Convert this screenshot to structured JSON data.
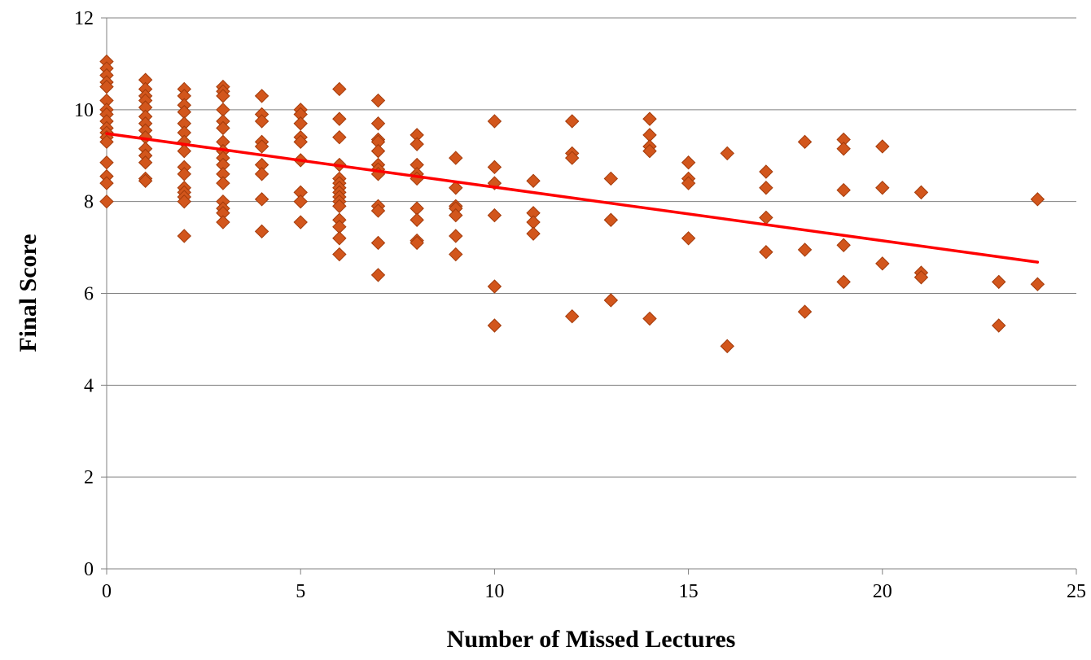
{
  "chart_data": {
    "type": "scatter",
    "xlabel": "Number of Missed Lectures",
    "ylabel": "Final Score",
    "xlim": [
      0,
      25
    ],
    "ylim": [
      0,
      12
    ],
    "x_ticks": [
      "0",
      "5",
      "10",
      "15",
      "20",
      "25"
    ],
    "y_ticks": [
      "0",
      "2",
      "4",
      "6",
      "8",
      "10",
      "12"
    ],
    "grid": "horizontal",
    "legend": "none",
    "series": [
      {
        "marker": "diamond",
        "color": "#d2561c",
        "edge_color": "#a23a0a",
        "points": [
          [
            0,
            11.05
          ],
          [
            0,
            10.9
          ],
          [
            0,
            10.75
          ],
          [
            0,
            10.6
          ],
          [
            0,
            10.5
          ],
          [
            0,
            10.2
          ],
          [
            0,
            10.0
          ],
          [
            0,
            9.9
          ],
          [
            0,
            9.75
          ],
          [
            0,
            9.6
          ],
          [
            0,
            9.5
          ],
          [
            0,
            9.4
          ],
          [
            0,
            9.3
          ],
          [
            0,
            8.85
          ],
          [
            0,
            8.55
          ],
          [
            0,
            8.4
          ],
          [
            0,
            8.0
          ],
          [
            1,
            10.65
          ],
          [
            1,
            10.45
          ],
          [
            1,
            10.3
          ],
          [
            1,
            10.2
          ],
          [
            1,
            10.05
          ],
          [
            1,
            9.85
          ],
          [
            1,
            9.7
          ],
          [
            1,
            9.55
          ],
          [
            1,
            9.4
          ],
          [
            1,
            9.15
          ],
          [
            1,
            9.0
          ],
          [
            1,
            8.85
          ],
          [
            1,
            8.5
          ],
          [
            1,
            8.45
          ],
          [
            2,
            10.45
          ],
          [
            2,
            10.3
          ],
          [
            2,
            10.1
          ],
          [
            2,
            9.95
          ],
          [
            2,
            9.7
          ],
          [
            2,
            9.5
          ],
          [
            2,
            9.3
          ],
          [
            2,
            9.1
          ],
          [
            2,
            8.75
          ],
          [
            2,
            8.6
          ],
          [
            2,
            8.3
          ],
          [
            2,
            8.2
          ],
          [
            2,
            8.1
          ],
          [
            2,
            8.0
          ],
          [
            2,
            7.25
          ],
          [
            3,
            10.5
          ],
          [
            3,
            10.4
          ],
          [
            3,
            10.3
          ],
          [
            3,
            10.0
          ],
          [
            3,
            9.75
          ],
          [
            3,
            9.6
          ],
          [
            3,
            9.3
          ],
          [
            3,
            9.1
          ],
          [
            3,
            8.95
          ],
          [
            3,
            8.8
          ],
          [
            3,
            8.6
          ],
          [
            3,
            8.4
          ],
          [
            3,
            8.0
          ],
          [
            3,
            7.85
          ],
          [
            3,
            7.75
          ],
          [
            3,
            7.55
          ],
          [
            4,
            10.3
          ],
          [
            4,
            9.9
          ],
          [
            4,
            9.75
          ],
          [
            4,
            9.3
          ],
          [
            4,
            9.2
          ],
          [
            4,
            8.8
          ],
          [
            4,
            8.6
          ],
          [
            4,
            8.05
          ],
          [
            4,
            7.35
          ],
          [
            5,
            10.0
          ],
          [
            5,
            9.9
          ],
          [
            5,
            9.7
          ],
          [
            5,
            9.4
          ],
          [
            5,
            9.3
          ],
          [
            5,
            8.9
          ],
          [
            5,
            8.2
          ],
          [
            5,
            8.0
          ],
          [
            5,
            7.55
          ],
          [
            6,
            10.45
          ],
          [
            6,
            9.8
          ],
          [
            6,
            9.4
          ],
          [
            6,
            8.8
          ],
          [
            6,
            8.5
          ],
          [
            6,
            8.4
          ],
          [
            6,
            8.3
          ],
          [
            6,
            8.2
          ],
          [
            6,
            8.1
          ],
          [
            6,
            8.0
          ],
          [
            6,
            7.9
          ],
          [
            6,
            7.6
          ],
          [
            6,
            7.45
          ],
          [
            6,
            7.2
          ],
          [
            6,
            6.85
          ],
          [
            7,
            10.2
          ],
          [
            7,
            9.7
          ],
          [
            7,
            9.35
          ],
          [
            7,
            9.3
          ],
          [
            7,
            9.1
          ],
          [
            7,
            8.8
          ],
          [
            7,
            8.7
          ],
          [
            7,
            8.6
          ],
          [
            7,
            7.9
          ],
          [
            7,
            7.8
          ],
          [
            7,
            7.1
          ],
          [
            7,
            6.4
          ],
          [
            8,
            9.45
          ],
          [
            8,
            9.25
          ],
          [
            8,
            8.8
          ],
          [
            8,
            8.6
          ],
          [
            8,
            8.5
          ],
          [
            8,
            7.85
          ],
          [
            8,
            7.6
          ],
          [
            8,
            7.15
          ],
          [
            8,
            7.1
          ],
          [
            9,
            8.95
          ],
          [
            9,
            8.3
          ],
          [
            9,
            7.9
          ],
          [
            9,
            7.85
          ],
          [
            9,
            7.7
          ],
          [
            9,
            7.25
          ],
          [
            9,
            6.85
          ],
          [
            10,
            9.75
          ],
          [
            10,
            8.75
          ],
          [
            10,
            8.4
          ],
          [
            10,
            7.7
          ],
          [
            10,
            6.15
          ],
          [
            10,
            5.3
          ],
          [
            11,
            8.45
          ],
          [
            11,
            7.75
          ],
          [
            11,
            7.55
          ],
          [
            11,
            7.3
          ],
          [
            12,
            9.75
          ],
          [
            12,
            9.05
          ],
          [
            12,
            8.95
          ],
          [
            12,
            5.5
          ],
          [
            13,
            8.5
          ],
          [
            13,
            7.6
          ],
          [
            13,
            5.85
          ],
          [
            14,
            9.8
          ],
          [
            14,
            9.45
          ],
          [
            14,
            9.2
          ],
          [
            14,
            9.1
          ],
          [
            14,
            5.45
          ],
          [
            15,
            8.85
          ],
          [
            15,
            8.5
          ],
          [
            15,
            8.4
          ],
          [
            15,
            7.2
          ],
          [
            16,
            9.05
          ],
          [
            16,
            4.85
          ],
          [
            17,
            8.65
          ],
          [
            17,
            8.3
          ],
          [
            17,
            7.65
          ],
          [
            17,
            6.9
          ],
          [
            18,
            9.3
          ],
          [
            18,
            6.95
          ],
          [
            18,
            5.6
          ],
          [
            19,
            9.35
          ],
          [
            19,
            9.15
          ],
          [
            19,
            8.25
          ],
          [
            19,
            7.05
          ],
          [
            19,
            6.25
          ],
          [
            20,
            9.2
          ],
          [
            20,
            8.3
          ],
          [
            20,
            6.65
          ],
          [
            21,
            8.2
          ],
          [
            21,
            6.45
          ],
          [
            21,
            6.35
          ],
          [
            23,
            6.25
          ],
          [
            23,
            5.3
          ],
          [
            24,
            8.05
          ],
          [
            24,
            6.2
          ]
        ]
      }
    ],
    "trendline": {
      "type": "linear",
      "color": "#ff0000",
      "x": [
        0,
        24
      ],
      "y": [
        9.48,
        6.68
      ]
    }
  }
}
